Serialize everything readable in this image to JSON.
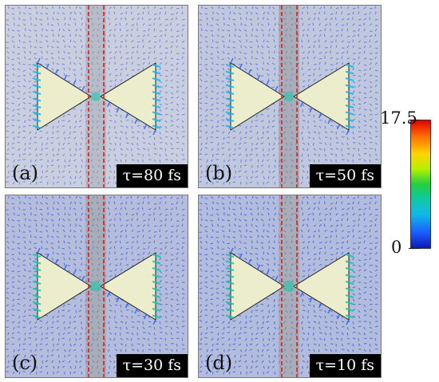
{
  "panels": [
    {
      "id": "a",
      "label": "(a)",
      "tau": "τ=80 fs",
      "bg": "#c9cfdf",
      "density": 0.45,
      "field": 0.55,
      "gap_white": true
    },
    {
      "id": "b",
      "label": "(b)",
      "tau": "τ=50 fs",
      "bg": "#c0c8de",
      "density": 0.6,
      "field": 0.65,
      "gap_white": false
    },
    {
      "id": "c",
      "label": "(c)",
      "tau": "τ=30 fs",
      "bg": "#b4bedc",
      "density": 0.8,
      "field": 0.75,
      "gap_white": false
    },
    {
      "id": "d",
      "label": "(d)",
      "tau": "τ=10 fs",
      "bg": "#b2bcdc",
      "density": 0.9,
      "field": 0.85,
      "gap_white": false
    }
  ],
  "colorbar": {
    "max_label": "17.5",
    "min_label": "0",
    "colors": [
      "#e00000",
      "#ff6a00",
      "#ffd400",
      "#b6f000",
      "#22d040",
      "#10c8a8",
      "#10b8e8",
      "#1a5cff",
      "#1018b4"
    ]
  },
  "colors": {
    "antenna_fill": "#ecedcc",
    "gap_line": "#e01c1c",
    "strip": "#a8adb8",
    "arrow_base": "#1a2ad8"
  }
}
